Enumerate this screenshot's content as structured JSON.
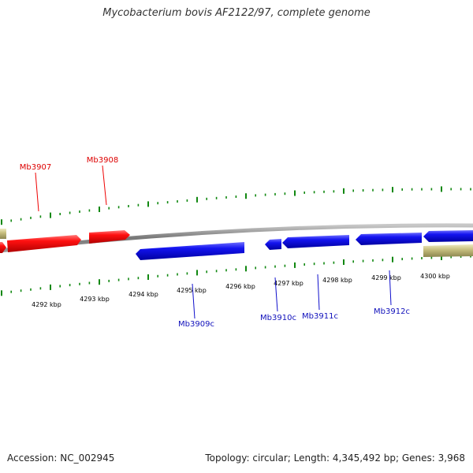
{
  "header": {
    "title": "Mycobacterium bovis AF2122/97, complete genome"
  },
  "footer": {
    "accession": "Accession: NC_002945",
    "summary": "Topology: circular; Length: 4,345,492 bp; Genes: 3,968"
  },
  "colors": {
    "forward_gene": "#ee0000",
    "reverse_gene": "#1010e0",
    "other_feature": "#c8c080",
    "ticks": "#118811",
    "backbone": "#888888"
  },
  "position_labels": [
    {
      "text": "4292 kbp",
      "kbp": 4292
    },
    {
      "text": "4293 kbp",
      "kbp": 4293
    },
    {
      "text": "4294 kbp",
      "kbp": 4294
    },
    {
      "text": "4295 kbp",
      "kbp": 4295
    },
    {
      "text": "4296 kbp",
      "kbp": 4296
    },
    {
      "text": "4297 kbp",
      "kbp": 4297
    },
    {
      "text": "4298 kbp",
      "kbp": 4298
    },
    {
      "text": "4299 kbp",
      "kbp": 4299
    },
    {
      "text": "4300 kbp",
      "kbp": 4300
    }
  ],
  "forward_genes": [
    {
      "label": "Mb3907"
    },
    {
      "label": "Mb3908"
    }
  ],
  "reverse_genes": [
    {
      "label": "Mb3909c"
    },
    {
      "label": "Mb3910c"
    },
    {
      "label": "Mb3911c"
    },
    {
      "label": "Mb3912c"
    }
  ]
}
